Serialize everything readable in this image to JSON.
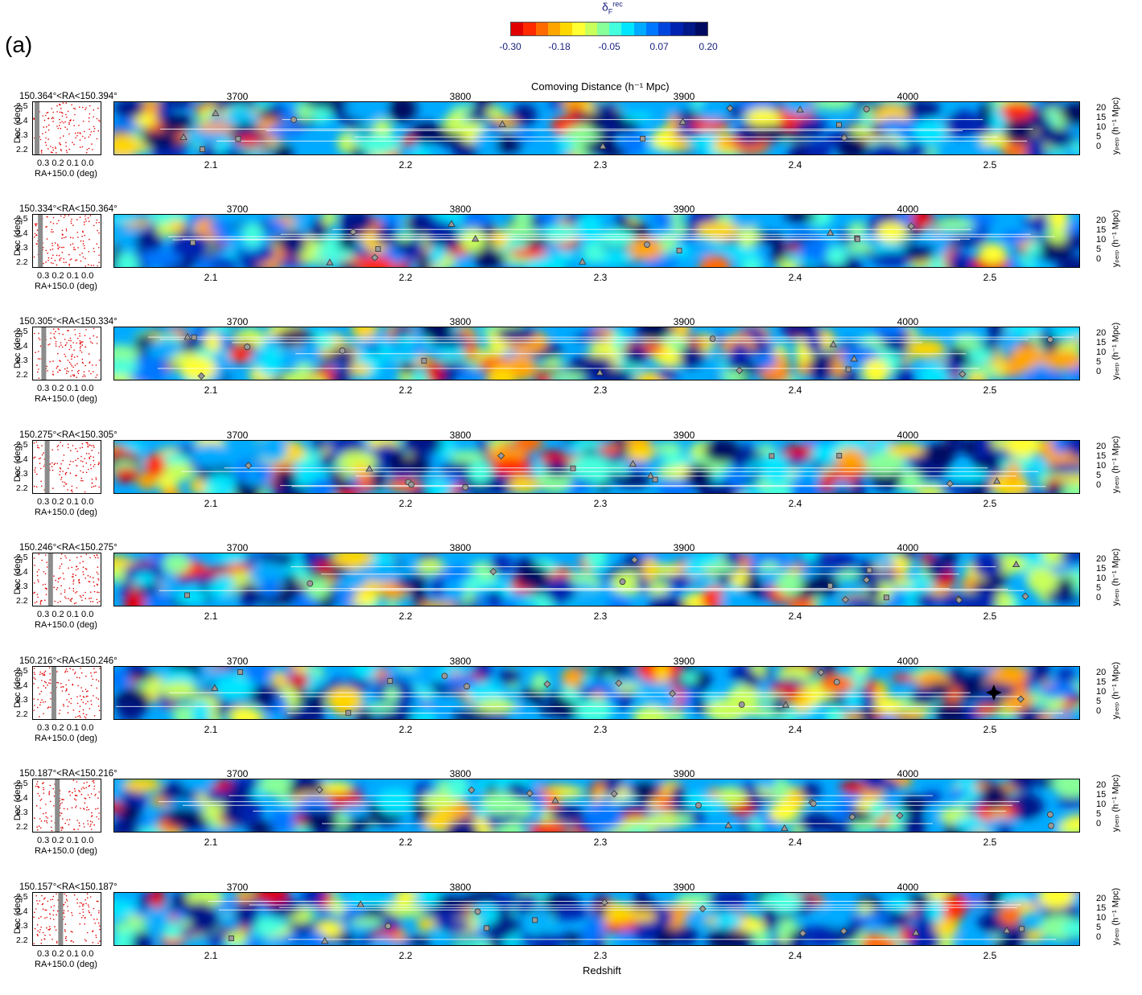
{
  "panel_label": "(a)",
  "colorbar": {
    "title_main": "δ",
    "title_sub": "F",
    "title_sup": "rec",
    "ticks": [
      "-0.30",
      "-0.18",
      "-0.05",
      "0.07",
      "0.20"
    ],
    "colors": [
      "#e00000",
      "#ff2a00",
      "#ff6a00",
      "#ffa500",
      "#ffd700",
      "#ffff33",
      "#c8ff5a",
      "#88ff99",
      "#44ffdd",
      "#00e5ff",
      "#00aaff",
      "#0077ff",
      "#0044dd",
      "#0022b0",
      "#001888",
      "#000a60"
    ]
  },
  "axes": {
    "top_xlabel": "Comoving Distance (h⁻¹ Mpc)",
    "bottom_xlabel": "Redshift",
    "dist_ticks": [
      "3700",
      "3800",
      "3900",
      "4000"
    ],
    "z_ticks": [
      "2.1",
      "2.2",
      "2.3",
      "2.4",
      "2.5"
    ],
    "yperp_ticks": [
      "20",
      "15",
      "10",
      "5",
      "0"
    ],
    "yperp_label": "yₚₑᵣₚ (h⁻¹ Mpc)",
    "dec_label": "Dec (deg)",
    "dec_ticks": [
      "2.5",
      "2.4",
      "2.3",
      "2.2"
    ],
    "ra_ticks": "0.3 0.2 0.1 0.0",
    "ra_label": "RA+150.0 (deg)"
  },
  "rows": [
    {
      "ra_range": "150.364°<RA<150.394°"
    },
    {
      "ra_range": "150.334°<RA<150.364°"
    },
    {
      "ra_range": "150.305°<RA<150.334°"
    },
    {
      "ra_range": "150.275°<RA<150.305°"
    },
    {
      "ra_range": "150.246°<RA<150.275°"
    },
    {
      "ra_range": "150.216°<RA<150.246°"
    },
    {
      "ra_range": "150.187°<RA<150.216°"
    },
    {
      "ra_range": "150.157°<RA<150.187°"
    }
  ],
  "chart_data": {
    "type": "heatmap",
    "description_of_marks": "Tomographic reconstruction slices of Lyman-alpha forest absorption",
    "x_redshift_range": [
      2.05,
      2.55
    ],
    "x_distance_ticks_hMpc": [
      3700,
      3800,
      3900,
      4000
    ],
    "z_ticks": [
      2.1,
      2.2,
      2.3,
      2.4,
      2.5
    ],
    "y_perp_range_hMpc": [
      0,
      23
    ],
    "dec_range": [
      2.15,
      2.52
    ],
    "colorbar_range": [
      -0.3,
      0.2
    ],
    "slices": [
      {
        "ra_min": 150.364,
        "ra_max": 150.394
      },
      {
        "ra_min": 150.334,
        "ra_max": 150.364
      },
      {
        "ra_min": 150.305,
        "ra_max": 150.334
      },
      {
        "ra_min": 150.275,
        "ra_max": 150.305
      },
      {
        "ra_min": 150.246,
        "ra_max": 150.275
      },
      {
        "ra_min": 150.216,
        "ra_max": 150.246
      },
      {
        "ra_min": 150.187,
        "ra_max": 150.216
      },
      {
        "ra_min": 150.157,
        "ra_max": 150.187
      }
    ]
  }
}
